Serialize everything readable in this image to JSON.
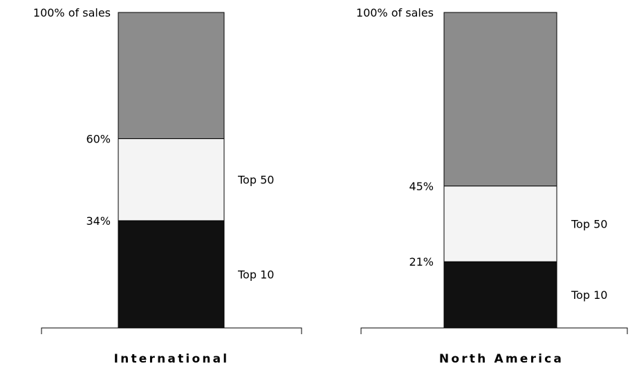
{
  "chart_data": {
    "type": "bar",
    "stacked": true,
    "categories": [
      "International",
      "North America"
    ],
    "ylim": [
      0,
      100
    ],
    "top_label": "100% of sales",
    "grid": false,
    "legend": "none",
    "series": [
      {
        "label": "Top 10",
        "color": "#111111",
        "values": [
          34,
          21
        ]
      },
      {
        "label": "Top 50",
        "color": "#f4f4f4",
        "values": [
          26,
          24
        ]
      },
      {
        "label": "",
        "color": "#8c8c8c",
        "values": [
          40,
          55
        ]
      }
    ],
    "boundary_labels": [
      [
        "34%",
        "60%"
      ],
      [
        "21%",
        "45%"
      ]
    ]
  }
}
